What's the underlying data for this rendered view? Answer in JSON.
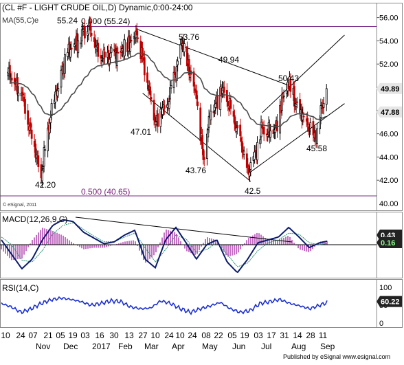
{
  "colors": {
    "background": "#ffffff",
    "text": "#000000",
    "candle_up": "#000000",
    "candle_down": "#c00000",
    "ma_line": "#4a4a4a",
    "trendline": "#000000",
    "fib_line": "#7a2a8a",
    "fib_text": "#7a1f7a",
    "macd_line": "#0a1a6e",
    "signal_line": "#1f8f6a",
    "histogram": "#b040b0",
    "rsi_line": "#1a2fd0",
    "pointer_bg": "#222222",
    "pointer_text": "#ffffff",
    "pointer_green_text": "#8cff8c"
  },
  "chart_data": [
    {
      "type": "candlestick",
      "title": "(CL #F - LIGHT CRUDE OIL,D) Dynamic,0:00-24:00",
      "indicator_label": "MA(55,C)e",
      "source_label": "© eSignal, 2011",
      "y_ticks": [
        42.0,
        44.0,
        46.0,
        48.0,
        50.0,
        52.0,
        54.0,
        56.0
      ],
      "y_labels": [
        "42.00",
        "44.00",
        "46.00",
        "48.00",
        "50.00",
        "52.00",
        "54.00",
        "56.00"
      ],
      "pointers": {
        "last": "49.89",
        "ma": "47.88"
      },
      "fib_levels": [
        {
          "label": "0.000 (55.24)",
          "value": 55.24
        },
        {
          "label": "0.500 (40.65)",
          "value": 40.65
        }
      ],
      "annotations": [
        {
          "text": "55.24",
          "value": 55.24
        },
        {
          "text": "53.76",
          "value": 53.76
        },
        {
          "text": "49.94",
          "value": 49.94
        },
        {
          "text": "50.43",
          "value": 50.43
        },
        {
          "text": "47.01",
          "value": 47.01
        },
        {
          "text": "43.76",
          "value": 43.76
        },
        {
          "text": "42.20",
          "value": 42.2
        },
        {
          "text": "42.5",
          "value": 42.5
        },
        {
          "text": "45.58",
          "value": 45.58
        }
      ],
      "key_points": [
        {
          "date": "2016-10-10",
          "close": 51.3
        },
        {
          "date": "2016-10-24",
          "close": 49.5
        },
        {
          "date": "2016-11-07",
          "close": 44.9
        },
        {
          "date": "2016-11-14",
          "close": 42.2
        },
        {
          "date": "2016-11-21",
          "close": 46.5
        },
        {
          "date": "2016-11-30",
          "close": 49.4
        },
        {
          "date": "2016-12-12",
          "close": 53.0
        },
        {
          "date": "2017-01-03",
          "close": 55.24
        },
        {
          "date": "2017-01-16",
          "close": 52.5
        },
        {
          "date": "2017-02-06",
          "close": 53.0
        },
        {
          "date": "2017-02-23",
          "close": 54.5
        },
        {
          "date": "2017-03-08",
          "close": 50.0
        },
        {
          "date": "2017-03-14",
          "close": 47.01
        },
        {
          "date": "2017-03-27",
          "close": 48.5
        },
        {
          "date": "2017-04-12",
          "close": 53.76
        },
        {
          "date": "2017-04-27",
          "close": 49.0
        },
        {
          "date": "2017-05-04",
          "close": 43.76
        },
        {
          "date": "2017-05-10",
          "close": 47.5
        },
        {
          "date": "2017-05-24",
          "close": 49.94
        },
        {
          "date": "2017-06-05",
          "close": 47.5
        },
        {
          "date": "2017-06-21",
          "close": 42.5
        },
        {
          "date": "2017-07-05",
          "close": 46.5
        },
        {
          "date": "2017-07-17",
          "close": 46.0
        },
        {
          "date": "2017-08-01",
          "close": 50.43
        },
        {
          "date": "2017-08-14",
          "close": 47.8
        },
        {
          "date": "2017-08-30",
          "close": 45.58
        },
        {
          "date": "2017-09-11",
          "close": 49.89
        }
      ],
      "ma_last": 47.88,
      "last_close": 49.89
    },
    {
      "type": "line",
      "title": "MACD(12,26,9,C)",
      "pointers": {
        "macd": "0.43",
        "signal": "0.16"
      },
      "series": [
        {
          "name": "MACD",
          "values": [
            0.5,
            -1.0,
            -2.5,
            -1.5,
            0.5,
            2.0,
            2.6,
            2.4,
            1.3,
            0.7,
            0.1,
            0.3,
            1.0,
            1.5,
            -1.5,
            -2.4,
            0.5,
            1.8,
            0.2,
            -1.5,
            0.0,
            0.5,
            -1.8,
            -2.9,
            -1.5,
            0.2,
            0.5,
            0.8,
            1.8,
            0.8,
            -0.3,
            0.2,
            0.43
          ]
        },
        {
          "name": "Signal",
          "values": [
            0.8,
            0.0,
            -1.6,
            -1.8,
            -0.6,
            1.1,
            2.0,
            2.3,
            1.6,
            0.9,
            0.3,
            0.3,
            0.8,
            1.2,
            -0.3,
            -1.8,
            -0.5,
            1.0,
            0.6,
            -0.8,
            -0.5,
            0.2,
            -1.0,
            -2.3,
            -1.9,
            -0.6,
            0.2,
            0.5,
            1.2,
            1.1,
            0.2,
            0.0,
            0.16
          ]
        }
      ]
    },
    {
      "type": "line",
      "title": "RSI(14,C)",
      "pointers": {
        "rsi": "60.22"
      },
      "y_labels": [
        "100",
        "50",
        "0"
      ],
      "series": [
        {
          "name": "RSI",
          "values": [
            55,
            45,
            30,
            40,
            55,
            65,
            70,
            66,
            60,
            50,
            55,
            62,
            60,
            45,
            40,
            42,
            62,
            55,
            40,
            30,
            40,
            48,
            58,
            40,
            30,
            35,
            55,
            60,
            66,
            55,
            48,
            40,
            50,
            60.22
          ]
        }
      ]
    }
  ],
  "x_axis": {
    "day_labels": [
      "10",
      "24",
      "07",
      "21",
      "05",
      "19",
      "03",
      "16",
      "30",
      "13",
      "27",
      "10",
      "24",
      "10",
      "24",
      "08",
      "22",
      "05",
      "19",
      "03",
      "17",
      "31",
      "14",
      "28",
      "11"
    ],
    "month_labels": [
      "Nov",
      "Dec",
      "2017",
      "Feb",
      "Mar",
      "Apr",
      "May",
      "Jun",
      "Jul",
      "Aug",
      "Sep"
    ]
  },
  "footer": {
    "text": "Published by eSignal  www.esignal.com"
  }
}
